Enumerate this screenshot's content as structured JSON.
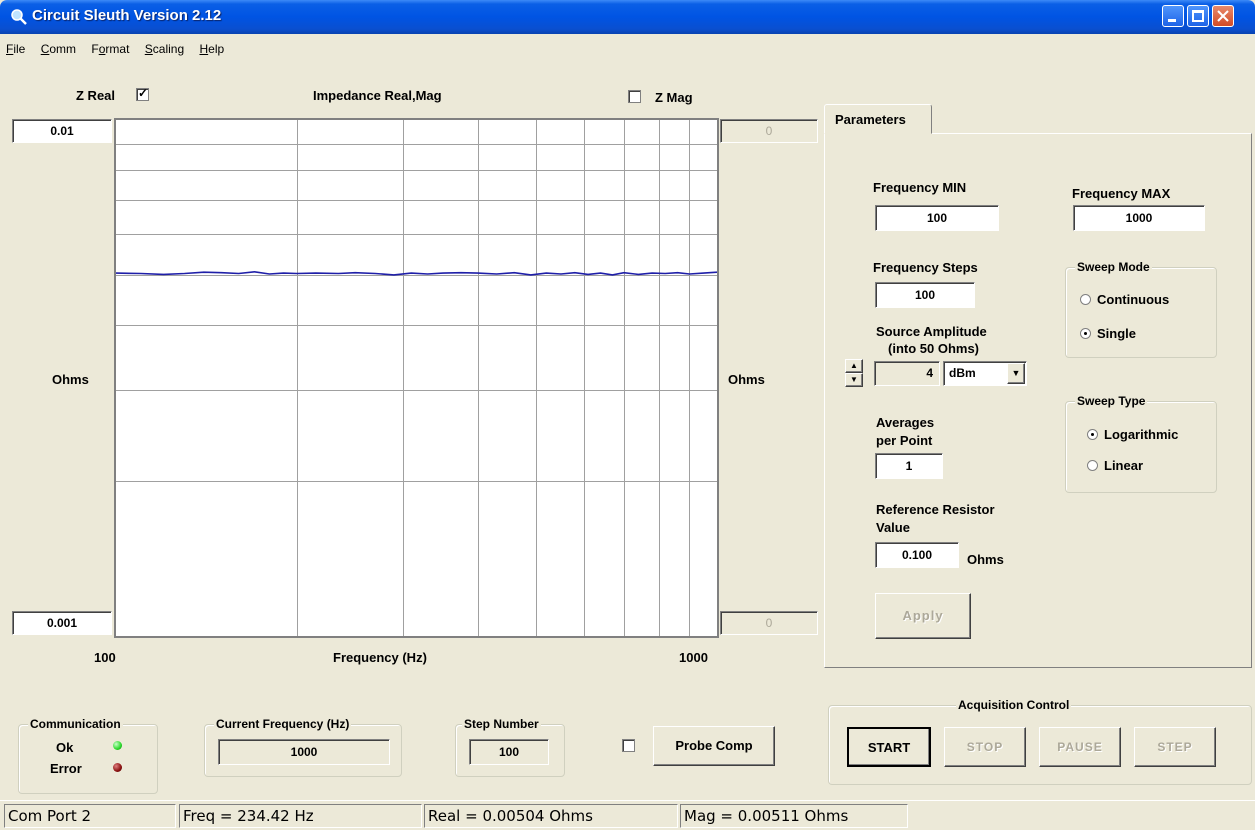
{
  "window": {
    "title": "Circuit Sleuth Version 2.12"
  },
  "menu": [
    {
      "pre": "",
      "u": "F",
      "post": "ile"
    },
    {
      "pre": "",
      "u": "C",
      "post": "omm"
    },
    {
      "pre": "F",
      "u": "o",
      "post": "rmat"
    },
    {
      "pre": "",
      "u": "S",
      "post": "caling"
    },
    {
      "pre": "",
      "u": "H",
      "post": "elp"
    }
  ],
  "plot": {
    "zreal_label": "Z Real",
    "zreal_checked": true,
    "title": "Impedance Real,Mag",
    "zmag_label": "Z Mag",
    "zmag_checked": false,
    "left_top_value": "0.01",
    "left_bottom_value": "0.001",
    "right_top_value": "0",
    "right_bottom_value": "0",
    "left_unit": "Ohms",
    "right_unit": "Ohms",
    "x_min_label": "100",
    "x_max_label": "1000",
    "x_axis_label": "Frequency (Hz)",
    "line_color": "#1f1fa8"
  },
  "chart_data": {
    "type": "line",
    "xlabel": "Frequency (Hz)",
    "ylabel": "Ohms",
    "xscale": "log",
    "yscale": "log",
    "xlim": [
      100,
      1000
    ],
    "ylim": [
      0.001,
      0.01
    ],
    "series": [
      {
        "x": [
          100,
          110,
          120,
          130,
          140,
          150,
          160,
          170,
          180,
          190,
          200,
          215,
          234.42,
          250,
          270,
          290,
          310,
          330,
          350,
          375,
          400,
          430,
          460,
          490,
          520,
          550,
          580,
          610,
          640,
          670,
          700,
          740,
          780,
          820,
          860,
          900,
          950,
          1000
        ],
        "y": [
          0.00505,
          0.00504,
          0.00502,
          0.00504,
          0.00507,
          0.00506,
          0.00504,
          0.00508,
          0.00503,
          0.00505,
          0.00504,
          0.00505,
          0.00504,
          0.00506,
          0.00504,
          0.00501,
          0.00505,
          0.00503,
          0.00505,
          0.00506,
          0.00505,
          0.00503,
          0.00506,
          0.00501,
          0.00505,
          0.00503,
          0.00506,
          0.00502,
          0.00505,
          0.00501,
          0.00506,
          0.00502,
          0.00505,
          0.00504,
          0.00506,
          0.00503,
          0.00505,
          0.00507
        ]
      }
    ]
  },
  "parameters": {
    "tab_label": "Parameters",
    "freq_min_label": "Frequency MIN",
    "freq_min_value": "100",
    "freq_max_label": "Frequency MAX",
    "freq_max_value": "1000",
    "freq_steps_label": "Frequency Steps",
    "freq_steps_value": "100",
    "sweep_mode": {
      "label": "Sweep Mode",
      "options": [
        "Continuous",
        "Single"
      ],
      "selected": "Single"
    },
    "source_amp_label1": "Source Amplitude",
    "source_amp_label2": "(into 50 Ohms)",
    "source_amp_value": "4",
    "source_amp_unit": "dBm",
    "averages_label1": "Averages",
    "averages_label2": "per  Point",
    "averages_value": "1",
    "sweep_type": {
      "label": "Sweep Type",
      "options": [
        "Logarithmic",
        "Linear"
      ],
      "selected": "Logarithmic"
    },
    "ref_res_label1": "Reference Resistor",
    "ref_res_label2": "Value",
    "ref_res_value": "0.100",
    "ref_res_unit": "Ohms",
    "apply_label": "Apply"
  },
  "communication": {
    "label": "Communication",
    "ok_label": "Ok",
    "error_label": "Error",
    "ok_color": "#29d829",
    "error_color": "#8a1010"
  },
  "current_frequency": {
    "label": "Current Frequency (Hz)",
    "value": "1000"
  },
  "step_number": {
    "label": "Step Number",
    "value": "100"
  },
  "probe_comp": {
    "label": "Probe Comp",
    "checked": false
  },
  "acquisition": {
    "label": "Acquisition Control",
    "start": "START",
    "stop": "STOP",
    "pause": "PAUSE",
    "step": "STEP"
  },
  "status": {
    "port": "Com Port 2",
    "freq": "Freq =   234.42 Hz",
    "real": "Real = 0.00504 Ohms",
    "mag": "Mag = 0.00511 Ohms"
  }
}
